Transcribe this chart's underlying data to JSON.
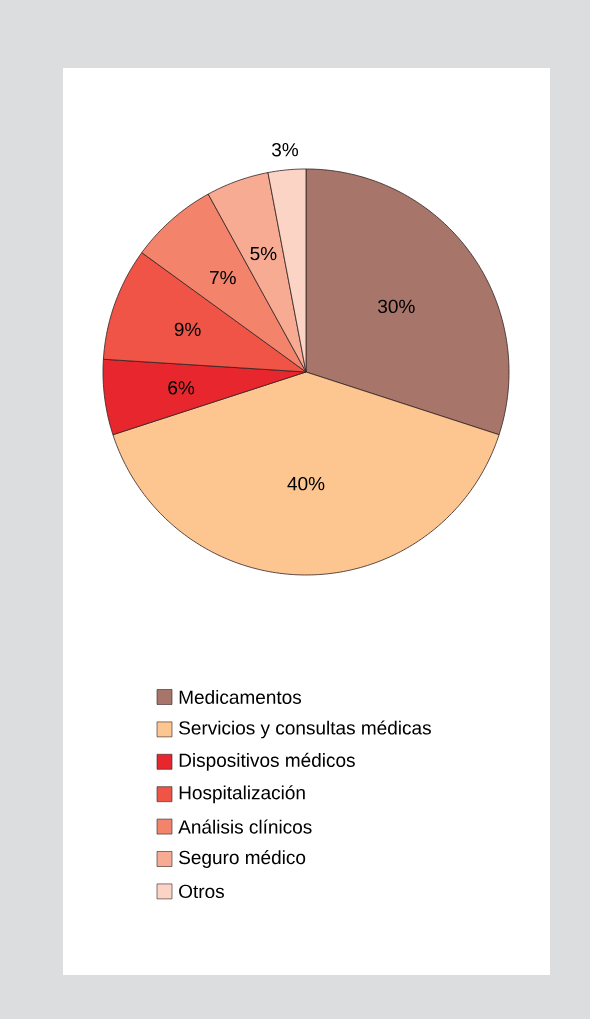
{
  "chart_data": {
    "type": "pie",
    "categories": [
      "Medicamentos",
      "Servicios y consultas médicas",
      "Dispositivos médicos",
      "Hospitalización",
      "Análisis clínicos",
      "Seguro médico",
      "Otros"
    ],
    "values": [
      30,
      40,
      6,
      9,
      7,
      5,
      3
    ],
    "value_labels": [
      "30%",
      "40%",
      "6%",
      "9%",
      "7%",
      "5%",
      "3%"
    ],
    "colors": [
      "#a8756a",
      "#fdc58f",
      "#e8262d",
      "#ef5447",
      "#f3836b",
      "#f8ab93",
      "#fcd4c6"
    ],
    "legend": "bottom"
  }
}
